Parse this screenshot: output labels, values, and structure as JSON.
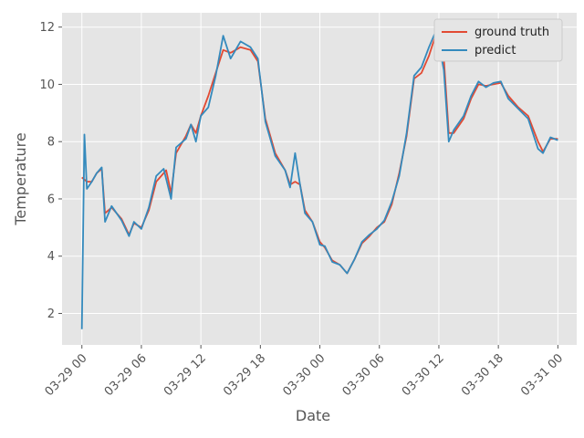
{
  "chart_data": {
    "type": "line",
    "title": "",
    "xlabel": "Date",
    "ylabel": "Temperature",
    "x_unit": "hour",
    "x_ticks": [
      "03-29 00",
      "03-29 06",
      "03-29 12",
      "03-29 18",
      "03-30 00",
      "03-30 06",
      "03-30 12",
      "03-30 18",
      "03-31 00"
    ],
    "y_ticks": [
      "2",
      "4",
      "6",
      "8",
      "10",
      "12"
    ],
    "xlim": [
      "03-28 22:00",
      "03-31 01:54"
    ],
    "ylim": [
      0.9,
      12.5
    ],
    "grid": true,
    "legend": "top-right",
    "series": [
      {
        "name": "ground truth",
        "color": "#E24A33",
        "points": [
          [
            "03-29 00:00",
            6.75
          ],
          [
            "03-29 00:30",
            6.6
          ],
          [
            "03-29 01:00",
            6.6
          ],
          [
            "03-29 01:30",
            6.9
          ],
          [
            "03-29 02:00",
            7.05
          ],
          [
            "03-29 02:20",
            5.5
          ],
          [
            "03-29 03:00",
            5.7
          ],
          [
            "03-29 04:00",
            5.3
          ],
          [
            "03-29 04:45",
            4.75
          ],
          [
            "03-29 05:15",
            5.15
          ],
          [
            "03-29 06:00",
            5.0
          ],
          [
            "03-29 06:45",
            5.6
          ],
          [
            "03-29 07:30",
            6.6
          ],
          [
            "03-29 08:30",
            7.0
          ],
          [
            "03-29 09:00",
            6.2
          ],
          [
            "03-29 09:30",
            7.6
          ],
          [
            "03-29 10:30",
            8.2
          ],
          [
            "03-29 11:00",
            8.6
          ],
          [
            "03-29 11:30",
            8.3
          ],
          [
            "03-29 12:00",
            8.9
          ],
          [
            "03-29 12:45",
            9.6
          ],
          [
            "03-29 13:30",
            10.4
          ],
          [
            "03-29 14:15",
            11.2
          ],
          [
            "03-29 15:00",
            11.1
          ],
          [
            "03-29 16:00",
            11.3
          ],
          [
            "03-29 17:00",
            11.2
          ],
          [
            "03-29 17:45",
            10.8
          ],
          [
            "03-29 18:30",
            8.8
          ],
          [
            "03-29 19:30",
            7.6
          ],
          [
            "03-29 20:30",
            7.0
          ],
          [
            "03-29 21:00",
            6.5
          ],
          [
            "03-29 21:30",
            6.6
          ],
          [
            "03-29 22:00",
            6.5
          ],
          [
            "03-29 22:30",
            5.6
          ],
          [
            "03-29 23:15",
            5.2
          ],
          [
            "03-30 00:00",
            4.5
          ],
          [
            "03-30 00:30",
            4.3
          ],
          [
            "03-30 01:15",
            3.85
          ],
          [
            "03-30 02:00",
            3.7
          ],
          [
            "03-30 02:45",
            3.4
          ],
          [
            "03-30 03:30",
            3.9
          ],
          [
            "03-30 04:15",
            4.45
          ],
          [
            "03-30 05:00",
            4.7
          ],
          [
            "03-30 05:45",
            5.0
          ],
          [
            "03-30 06:30",
            5.2
          ],
          [
            "03-30 07:15",
            5.8
          ],
          [
            "03-30 08:00",
            6.9
          ],
          [
            "03-30 08:45",
            8.2
          ],
          [
            "03-30 09:30",
            10.2
          ],
          [
            "03-30 10:15",
            10.4
          ],
          [
            "03-30 11:00",
            11.0
          ],
          [
            "03-30 11:45",
            11.8
          ],
          [
            "03-30 12:30",
            10.9
          ],
          [
            "03-30 13:00",
            8.3
          ],
          [
            "03-30 13:30",
            8.3
          ],
          [
            "03-30 14:30",
            8.8
          ],
          [
            "03-30 15:15",
            9.5
          ],
          [
            "03-30 16:00",
            10.0
          ],
          [
            "03-30 16:45",
            9.95
          ],
          [
            "03-30 17:30",
            10.0
          ],
          [
            "03-30 18:15",
            10.05
          ],
          [
            "03-30 19:00",
            9.6
          ],
          [
            "03-30 20:00",
            9.2
          ],
          [
            "03-30 21:00",
            8.9
          ],
          [
            "03-30 22:00",
            8.0
          ],
          [
            "03-30 22:30",
            7.65
          ],
          [
            "03-30 23:15",
            8.1
          ],
          [
            "03-31 00:00",
            8.1
          ]
        ]
      },
      {
        "name": "predict",
        "color": "#348ABD",
        "points": [
          [
            "03-29 00:00",
            1.45
          ],
          [
            "03-29 00:15",
            8.25
          ],
          [
            "03-29 00:30",
            6.35
          ],
          [
            "03-29 01:00",
            6.6
          ],
          [
            "03-29 01:30",
            6.9
          ],
          [
            "03-29 02:00",
            7.1
          ],
          [
            "03-29 02:20",
            5.2
          ],
          [
            "03-29 03:00",
            5.75
          ],
          [
            "03-29 04:00",
            5.25
          ],
          [
            "03-29 04:45",
            4.7
          ],
          [
            "03-29 05:15",
            5.2
          ],
          [
            "03-29 06:00",
            4.95
          ],
          [
            "03-29 06:45",
            5.7
          ],
          [
            "03-29 07:30",
            6.8
          ],
          [
            "03-29 08:15",
            7.05
          ],
          [
            "03-29 09:00",
            6.0
          ],
          [
            "03-29 09:30",
            7.8
          ],
          [
            "03-29 10:30",
            8.1
          ],
          [
            "03-29 11:00",
            8.6
          ],
          [
            "03-29 11:30",
            8.0
          ],
          [
            "03-29 12:00",
            8.9
          ],
          [
            "03-29 12:45",
            9.2
          ],
          [
            "03-29 13:30",
            10.3
          ],
          [
            "03-29 14:15",
            11.7
          ],
          [
            "03-29 15:00",
            10.9
          ],
          [
            "03-29 16:00",
            11.5
          ],
          [
            "03-29 17:00",
            11.3
          ],
          [
            "03-29 17:45",
            10.9
          ],
          [
            "03-29 18:30",
            8.7
          ],
          [
            "03-29 19:30",
            7.5
          ],
          [
            "03-29 20:30",
            7.0
          ],
          [
            "03-29 21:00",
            6.4
          ],
          [
            "03-29 21:30",
            7.6
          ],
          [
            "03-29 22:00",
            6.5
          ],
          [
            "03-29 22:30",
            5.5
          ],
          [
            "03-29 23:15",
            5.2
          ],
          [
            "03-30 00:00",
            4.4
          ],
          [
            "03-30 00:30",
            4.35
          ],
          [
            "03-30 01:15",
            3.8
          ],
          [
            "03-30 02:00",
            3.7
          ],
          [
            "03-30 02:45",
            3.4
          ],
          [
            "03-30 03:30",
            3.9
          ],
          [
            "03-30 04:15",
            4.5
          ],
          [
            "03-30 05:00",
            4.75
          ],
          [
            "03-30 05:45",
            4.95
          ],
          [
            "03-30 06:30",
            5.25
          ],
          [
            "03-30 07:15",
            5.9
          ],
          [
            "03-30 08:00",
            6.8
          ],
          [
            "03-30 08:45",
            8.3
          ],
          [
            "03-30 09:30",
            10.3
          ],
          [
            "03-30 10:15",
            10.6
          ],
          [
            "03-30 11:00",
            11.3
          ],
          [
            "03-30 11:45",
            11.9
          ],
          [
            "03-30 12:30",
            10.5
          ],
          [
            "03-30 13:00",
            8.0
          ],
          [
            "03-30 13:30",
            8.4
          ],
          [
            "03-30 14:30",
            8.9
          ],
          [
            "03-30 15:15",
            9.6
          ],
          [
            "03-30 16:00",
            10.1
          ],
          [
            "03-30 16:45",
            9.9
          ],
          [
            "03-30 17:30",
            10.05
          ],
          [
            "03-30 18:15",
            10.1
          ],
          [
            "03-30 19:00",
            9.5
          ],
          [
            "03-30 20:00",
            9.15
          ],
          [
            "03-30 21:00",
            8.8
          ],
          [
            "03-30 22:00",
            7.75
          ],
          [
            "03-30 22:30",
            7.6
          ],
          [
            "03-30 23:15",
            8.15
          ],
          [
            "03-31 00:00",
            8.05
          ]
        ]
      }
    ]
  }
}
